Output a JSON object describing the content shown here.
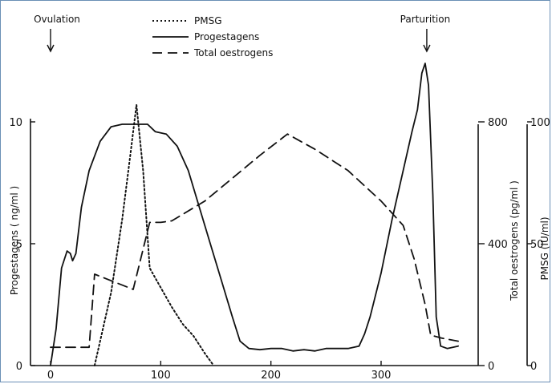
{
  "chart_data": {
    "type": "line",
    "x": {
      "ticks": [
        0,
        100,
        200,
        300
      ],
      "range": [
        0,
        370
      ]
    },
    "y_axes": {
      "progestagens": {
        "label": "Progestagens ( ng/ml )",
        "range": [
          0,
          10
        ],
        "ticks": [
          0,
          5,
          10
        ]
      },
      "oestrogens": {
        "label": "Total oestrogens (pg/ml )",
        "range": [
          0,
          800
        ],
        "ticks": [
          0,
          400,
          800
        ]
      },
      "pmsg": {
        "label": "PMSG (IU/ml)",
        "range": [
          0,
          100
        ],
        "ticks": [
          0,
          50,
          100
        ]
      }
    },
    "annotations": [
      {
        "text": "Ovulation",
        "x": 0
      },
      {
        "text": "Parturition",
        "x": 340
      }
    ],
    "series": [
      {
        "name": "PMSG",
        "axis": "pmsg",
        "style": "dotted",
        "points": [
          [
            40,
            0
          ],
          [
            55,
            30
          ],
          [
            65,
            60
          ],
          [
            72,
            85
          ],
          [
            78,
            107
          ],
          [
            84,
            80
          ],
          [
            90,
            40
          ],
          [
            100,
            32
          ],
          [
            110,
            24
          ],
          [
            120,
            17
          ],
          [
            130,
            12
          ],
          [
            140,
            5
          ],
          [
            148,
            0
          ]
        ]
      },
      {
        "name": "Progestagens",
        "axis": "progestagens",
        "style": "solid",
        "points": [
          [
            0,
            0
          ],
          [
            5,
            1.5
          ],
          [
            10,
            4
          ],
          [
            15,
            4.7
          ],
          [
            18,
            4.6
          ],
          [
            20,
            4.3
          ],
          [
            23,
            4.6
          ],
          [
            28,
            6.5
          ],
          [
            35,
            8
          ],
          [
            45,
            9.2
          ],
          [
            55,
            9.8
          ],
          [
            65,
            9.9
          ],
          [
            80,
            9.9
          ],
          [
            88,
            9.9
          ],
          [
            95,
            9.6
          ],
          [
            105,
            9.5
          ],
          [
            115,
            9
          ],
          [
            125,
            8
          ],
          [
            135,
            6.5
          ],
          [
            145,
            5
          ],
          [
            155,
            3.5
          ],
          [
            165,
            2
          ],
          [
            172,
            1
          ],
          [
            180,
            0.7
          ],
          [
            190,
            0.65
          ],
          [
            200,
            0.7
          ],
          [
            210,
            0.7
          ],
          [
            220,
            0.6
          ],
          [
            230,
            0.65
          ],
          [
            240,
            0.6
          ],
          [
            250,
            0.7
          ],
          [
            260,
            0.7
          ],
          [
            270,
            0.7
          ],
          [
            280,
            0.8
          ],
          [
            285,
            1.3
          ],
          [
            290,
            2
          ],
          [
            300,
            3.8
          ],
          [
            310,
            6
          ],
          [
            320,
            8
          ],
          [
            328,
            9.6
          ],
          [
            333,
            10.5
          ],
          [
            337,
            12
          ],
          [
            340,
            12.4
          ],
          [
            343,
            11.5
          ],
          [
            347,
            7
          ],
          [
            350,
            2
          ],
          [
            354,
            0.8
          ],
          [
            360,
            0.7
          ],
          [
            365,
            0.75
          ],
          [
            370,
            0.8
          ]
        ]
      },
      {
        "name": "Total oestrogens",
        "axis": "oestrogens",
        "style": "dashed",
        "points": [
          [
            0,
            60
          ],
          [
            35,
            60
          ],
          [
            40,
            300
          ],
          [
            75,
            250
          ],
          [
            90,
            470
          ],
          [
            100,
            470
          ],
          [
            110,
            475
          ],
          [
            140,
            540
          ],
          [
            190,
            690
          ],
          [
            215,
            760
          ],
          [
            240,
            710
          ],
          [
            270,
            640
          ],
          [
            300,
            540
          ],
          [
            320,
            460
          ],
          [
            330,
            350
          ],
          [
            340,
            200
          ],
          [
            345,
            100
          ],
          [
            355,
            90
          ],
          [
            370,
            80
          ]
        ]
      }
    ]
  }
}
